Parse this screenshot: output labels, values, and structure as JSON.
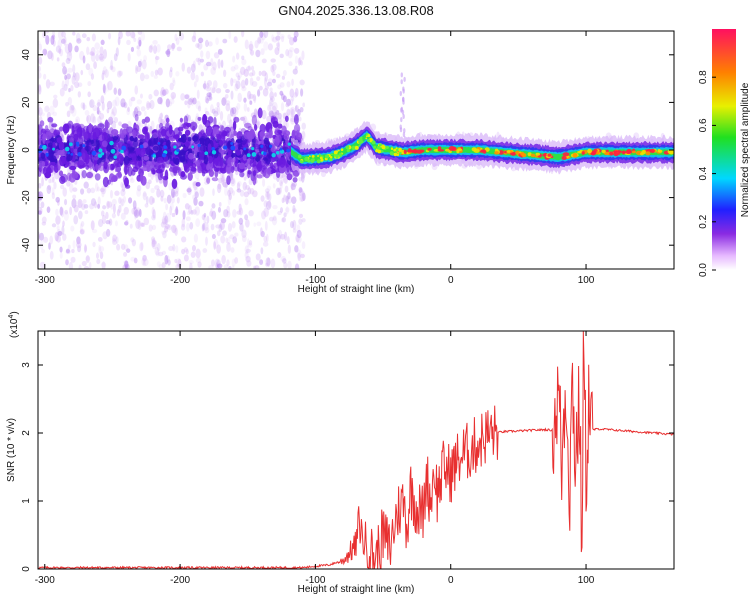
{
  "chart_data": [
    {
      "id": "spectrogram",
      "type": "heatmap",
      "title": "GN04.2025.336.13.08.R08",
      "xlabel": "Height of straight line (km)",
      "ylabel": "Frequency (Hz)",
      "xlim": [
        -305,
        165
      ],
      "ylim": [
        -50,
        50
      ],
      "xticks": [
        -300,
        -200,
        -100,
        0,
        100
      ],
      "xtick_labels": [
        "-300",
        "-200",
        "-100",
        "0",
        "100"
      ],
      "yticks": [
        -40,
        -20,
        0,
        20,
        40
      ],
      "ytick_labels": [
        "-40",
        "-20",
        "0",
        "20",
        "40"
      ],
      "grid": false,
      "colorbar": {
        "label": "Normalized spectral amplitude",
        "range": [
          0,
          1
        ],
        "ticks": [
          0.0,
          0.2,
          0.4,
          0.6,
          0.8
        ],
        "tick_labels": [
          "0.0",
          "0.2",
          "0.4",
          "0.6",
          "0.8"
        ]
      },
      "ridge": {
        "description_of_trend": "frequency centre vs height",
        "x": [
          -305,
          -120,
          -110,
          -90,
          -80,
          -70,
          -62,
          -55,
          -45,
          -35,
          -20,
          0,
          20,
          60,
          80,
          100,
          120,
          165
        ],
        "y": [
          0,
          0,
          -4,
          -3,
          -1,
          2,
          6,
          1,
          0,
          -1,
          0,
          0,
          0,
          -2,
          -3,
          -1,
          -1,
          -1
        ]
      }
    },
    {
      "id": "snr",
      "type": "line",
      "title": "",
      "xlabel": "Height of straight line (km)",
      "ylabel": "SNR (10 * v/v)",
      "scale_label": "(x10",
      "scale_exponent": "4",
      "scale_close": ")",
      "xlim": [
        -305,
        165
      ],
      "ylim": [
        0,
        3.5
      ],
      "xticks": [
        -300,
        -200,
        -100,
        0,
        100
      ],
      "xtick_labels": [
        "-300",
        "-200",
        "-100",
        "0",
        "100"
      ],
      "yticks": [
        0,
        1,
        2,
        3
      ],
      "ytick_labels": [
        "0",
        "1",
        "2",
        "3"
      ],
      "grid": false,
      "series": [
        {
          "name": "SNR",
          "color": "#e83030",
          "x": [
            -305,
            -200,
            -110,
            -100,
            -90,
            -80,
            -70,
            -68,
            -65,
            -60,
            -55,
            -50,
            -45,
            -40,
            -35,
            -32,
            -30,
            -25,
            -20,
            -18,
            -15,
            -12,
            -10,
            -5,
            0,
            5,
            10,
            15,
            20,
            25,
            30,
            40,
            50,
            60,
            70,
            75,
            80,
            82,
            85,
            88,
            90,
            92,
            95,
            97,
            98,
            100,
            102,
            105,
            110,
            130,
            150,
            165
          ],
          "y": [
            0.02,
            0.02,
            0.02,
            0.04,
            0.06,
            0.12,
            0.35,
            0.7,
            0.45,
            0.3,
            0.15,
            0.5,
            0.3,
            0.8,
            1.0,
            0.6,
            1.2,
            0.9,
            0.8,
            1.4,
            1.0,
            1.5,
            1.1,
            1.5,
            1.4,
            1.6,
            1.7,
            1.75,
            1.85,
            1.95,
            2.0,
            2.02,
            2.03,
            2.04,
            2.05,
            2.04,
            2.6,
            1.5,
            2.8,
            1.2,
            2.9,
            1.6,
            2.4,
            0.3,
            3.4,
            1.4,
            2.5,
            2.05,
            2.06,
            2.03,
            2.0,
            1.98
          ]
        }
      ]
    }
  ]
}
